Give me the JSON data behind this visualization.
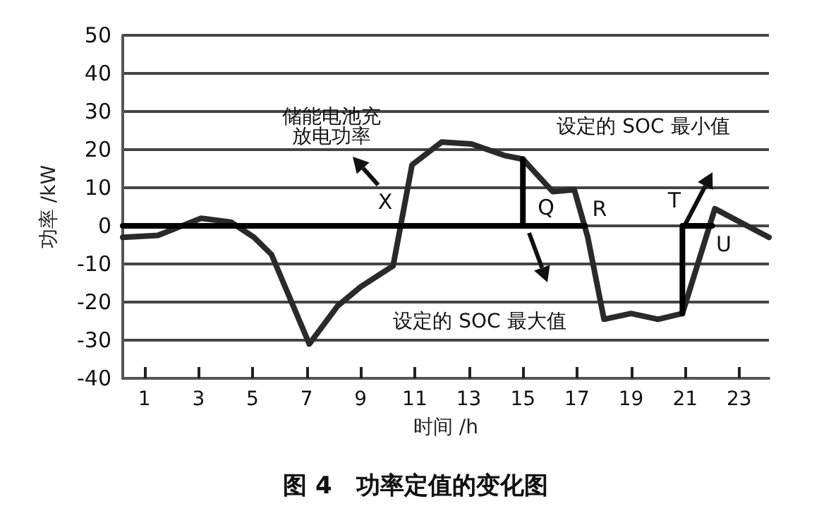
{
  "chart_data": {
    "type": "line",
    "title": "图 4　功率定值的变化图",
    "xlabel": "时间 /h",
    "ylabel": "功率 /kW",
    "xlim": [
      0.2,
      24.1
    ],
    "xticks": [
      1,
      3,
      5,
      7,
      9,
      11,
      13,
      15,
      17,
      19,
      21,
      23
    ],
    "ylim": [
      -40,
      50
    ],
    "yticks": [
      -40,
      -30,
      -20,
      -10,
      0,
      10,
      20,
      30,
      40,
      50
    ],
    "grid": "y",
    "marker": "none",
    "line_style": "solid",
    "series": [
      {
        "color": "#2a2a2a",
        "x": [
          0.2,
          1.5,
          3.1,
          4.2,
          5.05,
          5.7,
          7.1,
          8.15,
          9.0,
          10.2,
          10.9,
          12.0,
          13.1,
          14.3,
          15.0,
          16.1,
          16.9,
          17.4,
          18.0,
          19.0,
          20.0,
          20.9,
          22.1,
          24.1
        ],
        "values": [
          -3,
          -2.5,
          2,
          1,
          -3,
          -7.5,
          -31,
          -21,
          -16,
          -10.5,
          16,
          22,
          21.5,
          18.5,
          17.5,
          9,
          9.5,
          -3,
          -24.5,
          -23,
          -24.5,
          -23,
          4.5,
          -3
        ]
      },
      {
        "color": "#000000",
        "x": [
          0.2,
          15,
          15,
          15,
          17.3
        ],
        "values": [
          0,
          0,
          17.5,
          0,
          0
        ]
      },
      {
        "color": "#000000",
        "x": [
          20.9,
          20.9,
          22.0
        ],
        "values": [
          -23,
          0,
          0
        ]
      }
    ],
    "annotations": [
      "储能电池充放电功率",
      "X",
      "Q",
      "R",
      "T",
      "U",
      "设定的 SOC 最大值",
      "设定的 SOC 最小值"
    ]
  }
}
